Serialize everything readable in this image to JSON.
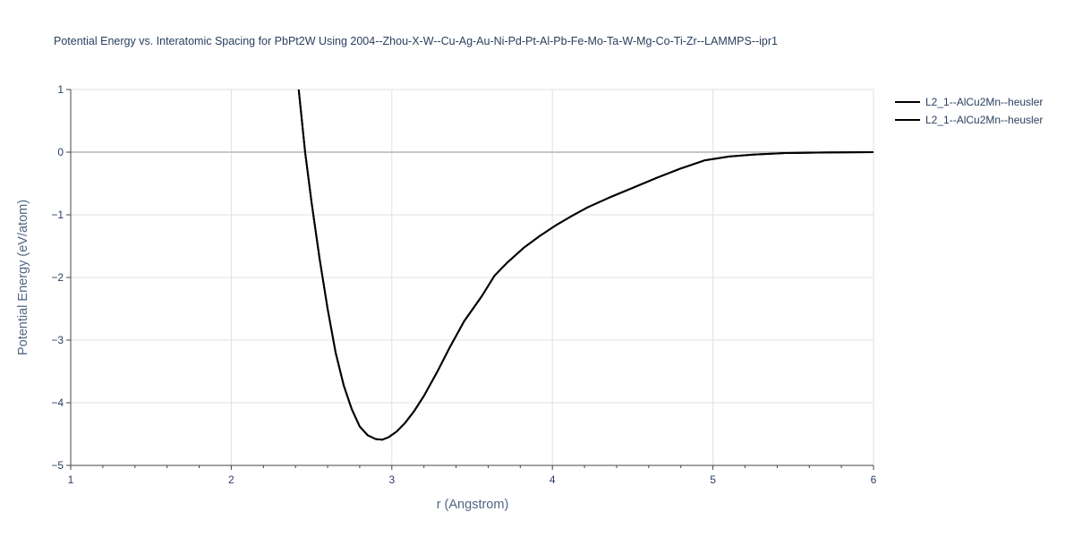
{
  "chart_data": {
    "type": "line",
    "title": "Potential Energy vs. Interatomic Spacing for PbPt2W Using 2004--Zhou-X-W--Cu-Ag-Au-Ni-Pd-Pt-Al-Pb-Fe-Mo-Ta-W-Mg-Co-Ti-Zr--LAMMPS--ipr1",
    "xlabel": "r (Angstrom)",
    "ylabel": "Potential Energy (eV/atom)",
    "xlim": [
      1,
      6
    ],
    "ylim": [
      -5,
      1
    ],
    "x_ticks": [
      1,
      2,
      3,
      4,
      5,
      6
    ],
    "x_tick_labels": [
      "1",
      "2",
      "3",
      "4",
      "5",
      "6"
    ],
    "y_ticks": [
      1,
      0,
      -1,
      -2,
      -3,
      -4,
      -5
    ],
    "y_tick_labels": [
      "1",
      "0",
      "−1",
      "−2",
      "−3",
      "−4",
      "−5"
    ],
    "grid": true,
    "legend_position": "top-right",
    "series_color": "#000000",
    "series": [
      {
        "name": "L2_1--AlCu2Mn--heusler",
        "x": [
          2.42,
          2.46,
          2.5,
          2.55,
          2.6,
          2.65,
          2.7,
          2.75,
          2.8,
          2.85,
          2.9,
          2.94,
          2.98,
          3.03,
          3.08,
          3.14,
          3.2,
          3.28,
          3.36,
          3.45,
          3.56,
          3.64,
          3.72,
          3.82,
          3.92,
          4.02,
          4.12,
          4.22,
          4.35,
          4.5,
          4.65,
          4.8,
          4.95,
          5.1,
          5.25,
          5.45,
          5.7,
          6.0
        ],
        "y": [
          1.0,
          0.0,
          -0.8,
          -1.7,
          -2.5,
          -3.2,
          -3.72,
          -4.1,
          -4.38,
          -4.52,
          -4.58,
          -4.59,
          -4.55,
          -4.46,
          -4.33,
          -4.13,
          -3.89,
          -3.52,
          -3.12,
          -2.7,
          -2.3,
          -1.97,
          -1.76,
          -1.53,
          -1.34,
          -1.17,
          -1.02,
          -0.88,
          -0.73,
          -0.57,
          -0.41,
          -0.26,
          -0.13,
          -0.07,
          -0.04,
          -0.015,
          -0.005,
          0.0
        ]
      },
      {
        "name": "L2_1--AlCu2Mn--heusler",
        "x": [
          2.42,
          2.46,
          2.5,
          2.55,
          2.6,
          2.65,
          2.7,
          2.75,
          2.8,
          2.85,
          2.9,
          2.94,
          2.98,
          3.03,
          3.08,
          3.14,
          3.2,
          3.28,
          3.36,
          3.45,
          3.56,
          3.64,
          3.72,
          3.82,
          3.92,
          4.02,
          4.12,
          4.22,
          4.35,
          4.5,
          4.65,
          4.8,
          4.95,
          5.1,
          5.25,
          5.45,
          5.7,
          6.0
        ],
        "y": [
          1.0,
          0.0,
          -0.8,
          -1.7,
          -2.5,
          -3.2,
          -3.72,
          -4.1,
          -4.38,
          -4.52,
          -4.58,
          -4.59,
          -4.55,
          -4.46,
          -4.33,
          -4.13,
          -3.89,
          -3.52,
          -3.12,
          -2.7,
          -2.3,
          -1.97,
          -1.76,
          -1.53,
          -1.34,
          -1.17,
          -1.02,
          -0.88,
          -0.73,
          -0.57,
          -0.41,
          -0.26,
          -0.13,
          -0.07,
          -0.04,
          -0.015,
          -0.005,
          0.0
        ]
      }
    ]
  }
}
